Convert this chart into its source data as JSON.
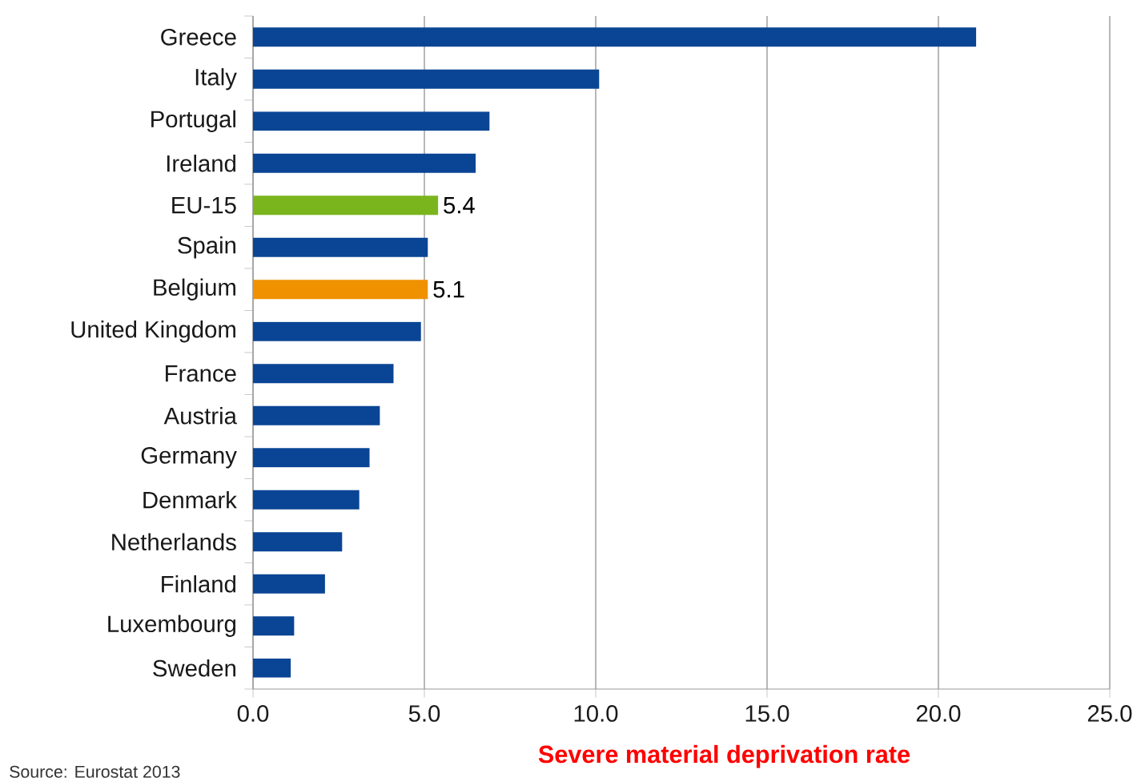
{
  "chart_data": {
    "type": "bar",
    "orientation": "horizontal",
    "categories": [
      "Greece",
      "Italy",
      "Portugal",
      "Ireland",
      "EU-15",
      "Spain",
      "Belgium",
      "United Kingdom",
      "France",
      "Austria",
      "Germany",
      "Denmark",
      "Netherlands",
      "Finland",
      "Luxembourg",
      "Sweden"
    ],
    "values": [
      21.1,
      10.1,
      6.9,
      6.5,
      5.4,
      5.1,
      5.1,
      4.9,
      4.1,
      3.7,
      3.4,
      3.1,
      2.6,
      2.1,
      1.2,
      1.1
    ],
    "colors": [
      "#0a4595",
      "#0a4595",
      "#0a4595",
      "#0a4595",
      "#7ab51d",
      "#0a4595",
      "#f09100",
      "#0a4595",
      "#0a4595",
      "#0a4595",
      "#0a4595",
      "#0a4595",
      "#0a4595",
      "#0a4595",
      "#0a4595",
      "#0a4595"
    ],
    "value_labels": [
      null,
      null,
      null,
      null,
      "5.4",
      null,
      "5.1",
      null,
      null,
      null,
      null,
      null,
      null,
      null,
      null,
      null
    ],
    "xlabel": "Severe material deprivation rate",
    "xlim": [
      0,
      25
    ],
    "xticks": [
      {
        "value": 0,
        "label": "0.0"
      },
      {
        "value": 5,
        "label": "5.0"
      },
      {
        "value": 10,
        "label": "10.0"
      },
      {
        "value": 15,
        "label": "15.0"
      },
      {
        "value": 20,
        "label": "20.0"
      },
      {
        "value": 25,
        "label": "25.0"
      }
    ],
    "grid": "x",
    "annotations": [
      "Source: Eurostat 2013"
    ]
  }
}
